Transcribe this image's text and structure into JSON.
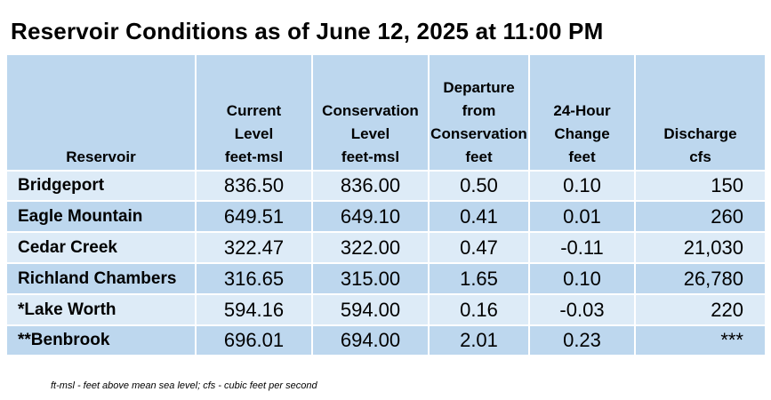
{
  "title": "Reservoir Conditions as of June 12, 2025 at 11:00 PM",
  "headers": [
    [
      "Reservoir"
    ],
    [
      "Current",
      "Level",
      "feet-msl"
    ],
    [
      "Conservation",
      "Level",
      "feet-msl"
    ],
    [
      "Departure",
      "from",
      "Conservation",
      "feet"
    ],
    [
      "24-Hour",
      "Change",
      "feet"
    ],
    [
      "Discharge",
      "cfs"
    ]
  ],
  "rows": [
    [
      "Bridgeport",
      "836.50",
      "836.00",
      "0.50",
      "0.10",
      "150"
    ],
    [
      "Eagle Mountain",
      "649.51",
      "649.10",
      "0.41",
      "0.01",
      "260"
    ],
    [
      "Cedar Creek",
      "322.47",
      "322.00",
      "0.47",
      "-0.11",
      "21,030"
    ],
    [
      "Richland Chambers",
      "316.65",
      "315.00",
      "1.65",
      "0.10",
      "26,780"
    ],
    [
      "*Lake Worth",
      "594.16",
      "594.00",
      "0.16",
      "-0.03",
      "220"
    ],
    [
      "**Benbrook",
      "696.01",
      "694.00",
      "2.01",
      "0.23",
      "***"
    ]
  ],
  "footnote": "ft-msl - feet above mean sea level; cfs - cubic feet per second",
  "colors": {
    "header": "#bdd7ee",
    "row_light": "#ddebf7",
    "row_dark": "#bdd7ee"
  }
}
